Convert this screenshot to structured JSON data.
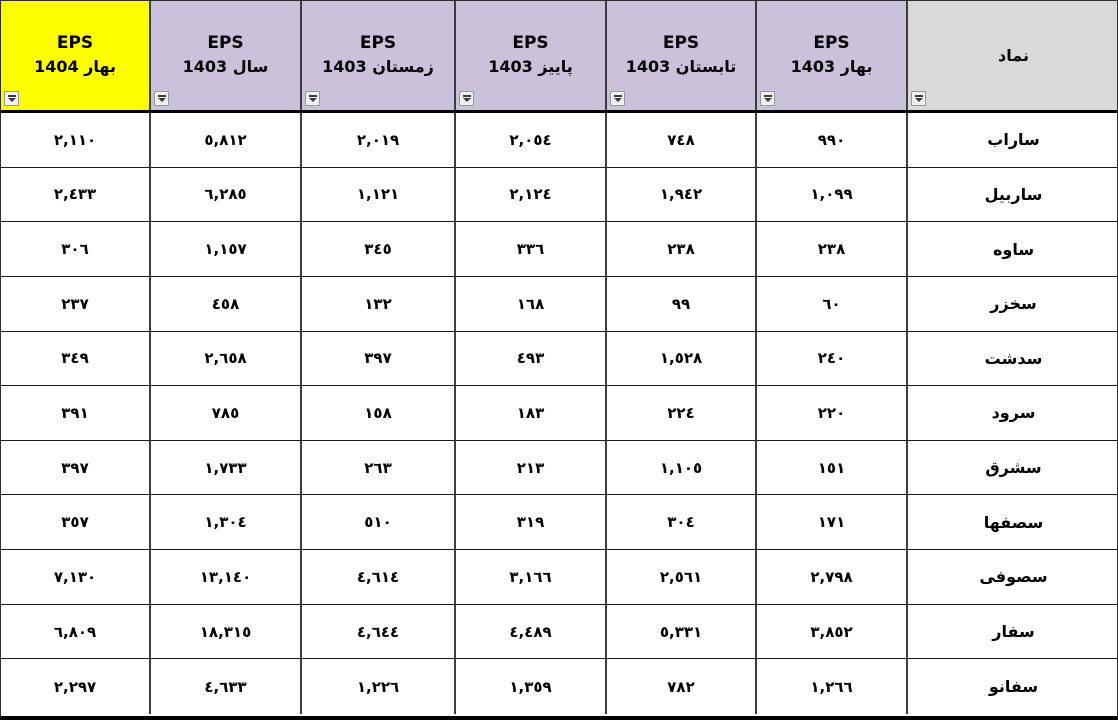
{
  "table": {
    "description_colors": {
      "highlight_yellow": "#FFFF00",
      "header_lavender": "#CCC1DA",
      "header_gray": "#D9D9D9",
      "grid_border": "#3d3d3d",
      "text": "#000000"
    },
    "columns": [
      {
        "id": "eps-spring-1404",
        "line1": "EPS",
        "line2": "بهار 1404",
        "bg": "#FFFF00"
      },
      {
        "id": "eps-year-1403",
        "line1": "EPS",
        "line2": "سال 1403",
        "bg": "#CCC1DA"
      },
      {
        "id": "eps-winter-1403",
        "line1": "EPS",
        "line2": "زمستان 1403",
        "bg": "#CCC1DA"
      },
      {
        "id": "eps-autumn-1403",
        "line1": "EPS",
        "line2": "پاییز 1403",
        "bg": "#CCC1DA"
      },
      {
        "id": "eps-summer-1403",
        "line1": "EPS",
        "line2": "تابستان 1403",
        "bg": "#CCC1DA"
      },
      {
        "id": "eps-spring-1403",
        "line1": "EPS",
        "line2": "بهار 1403",
        "bg": "#CCC1DA"
      },
      {
        "id": "symbol",
        "line1": "نماد",
        "line2": "",
        "bg": "#D9D9D9"
      }
    ],
    "rows": [
      {
        "symbol": "ساراب",
        "values": [
          "٢,١١٠",
          "٥,٨١٢",
          "٢,٠١٩",
          "٢,٠٥٤",
          "٧٤٨",
          "٩٩٠"
        ]
      },
      {
        "symbol": "ساربیل",
        "values": [
          "٢,٤٣٣",
          "٦,٢٨٥",
          "١,١٢١",
          "٢,١٢٤",
          "١,٩٤٢",
          "١,٠٩٩"
        ]
      },
      {
        "symbol": "ساوه",
        "values": [
          "٣٠٦",
          "١,١٥٧",
          "٣٤٥",
          "٣٣٦",
          "٢٣٨",
          "٢٣٨"
        ]
      },
      {
        "symbol": "سخزر",
        "values": [
          "٢٣٧",
          "٤٥٨",
          "١٣٢",
          "١٦٨",
          "٩٩",
          "٦٠"
        ]
      },
      {
        "symbol": "سدشت",
        "values": [
          "٣٤٩",
          "٢,٦٥٨",
          "٣٩٧",
          "٤٩٣",
          "١,٥٢٨",
          "٢٤٠"
        ]
      },
      {
        "symbol": "سرود",
        "values": [
          "٣٩١",
          "٧٨٥",
          "١٥٨",
          "١٨٣",
          "٢٢٤",
          "٢٢٠"
        ]
      },
      {
        "symbol": "سشرق",
        "values": [
          "٣٩٧",
          "١,٧٣٣",
          "٢٦٣",
          "٢١٣",
          "١,١٠٥",
          "١٥١"
        ]
      },
      {
        "symbol": "سصفها",
        "values": [
          "٣٥٧",
          "١,٣٠٤",
          "٥١٠",
          "٣١٩",
          "٣٠٤",
          "١٧١"
        ]
      },
      {
        "symbol": "سصوفی",
        "values": [
          "٧,١٣٠",
          "١٣,١٤٠",
          "٤,٦١٤",
          "٣,١٦٦",
          "٢,٥٦١",
          "٢,٧٩٨"
        ]
      },
      {
        "symbol": "سفار",
        "values": [
          "٦,٨٠٩",
          "١٨,٣١٥",
          "٤,٦٤٤",
          "٤,٤٨٩",
          "٥,٣٣١",
          "٣,٨٥٢"
        ]
      },
      {
        "symbol": "سفانو",
        "values": [
          "٢,٢٩٧",
          "٤,٦٣٣",
          "١,٢٢٦",
          "١,٣٥٩",
          "٧٨٢",
          "١,٢٦٦"
        ]
      }
    ]
  }
}
